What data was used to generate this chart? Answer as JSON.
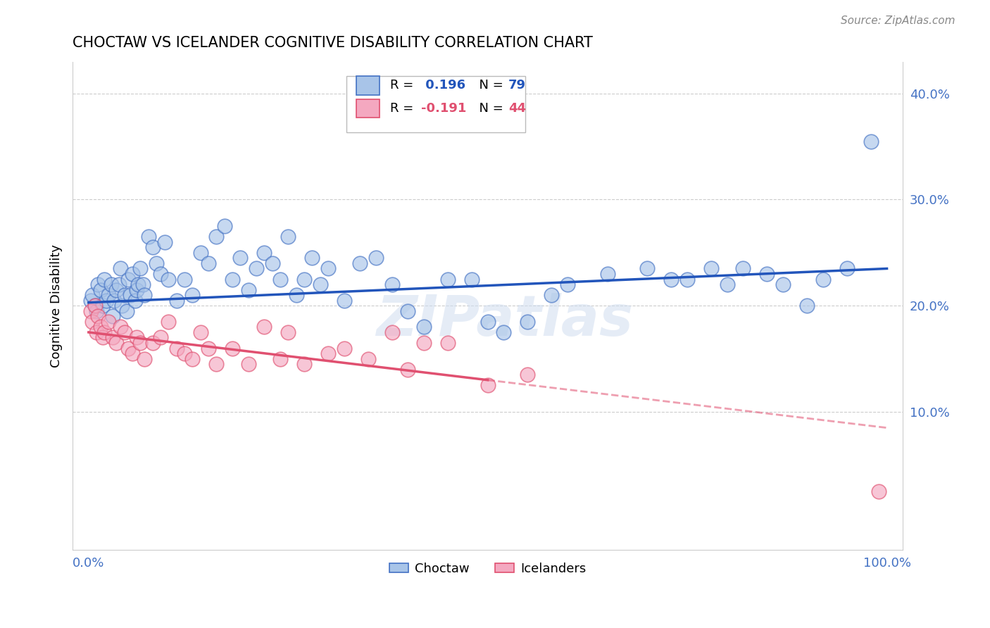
{
  "title": "CHOCTAW VS ICELANDER COGNITIVE DISABILITY CORRELATION CHART",
  "source": "Source: ZipAtlas.com",
  "ylabel": "Cognitive Disability",
  "watermark": "ZIPatlas",
  "choctaw_color": "#a8c4e8",
  "icelander_color": "#f4a8c0",
  "choctaw_edge_color": "#4472c4",
  "icelander_edge_color": "#e05070",
  "choctaw_line_color": "#2255bb",
  "icelander_line_color": "#e05070",
  "background_color": "#ffffff",
  "grid_color": "#cccccc",
  "axis_color": "#4472c4",
  "choctaw_x": [
    0.3,
    0.5,
    0.8,
    1.0,
    1.2,
    1.5,
    1.8,
    2.0,
    2.2,
    2.5,
    2.8,
    3.0,
    3.2,
    3.5,
    3.8,
    4.0,
    4.2,
    4.5,
    4.8,
    5.0,
    5.2,
    5.5,
    5.8,
    6.0,
    6.2,
    6.5,
    6.8,
    7.0,
    7.5,
    8.0,
    8.5,
    9.0,
    9.5,
    10.0,
    11.0,
    12.0,
    13.0,
    14.0,
    15.0,
    16.0,
    17.0,
    18.0,
    19.0,
    20.0,
    21.0,
    22.0,
    23.0,
    24.0,
    25.0,
    26.0,
    27.0,
    28.0,
    29.0,
    30.0,
    32.0,
    34.0,
    36.0,
    38.0,
    40.0,
    42.0,
    45.0,
    48.0,
    50.0,
    52.0,
    55.0,
    58.0,
    60.0,
    65.0,
    70.0,
    73.0,
    75.0,
    78.0,
    80.0,
    82.0,
    85.0,
    87.0,
    90.0,
    92.0,
    95.0,
    98.0
  ],
  "choctaw_y": [
    20.5,
    21.0,
    20.0,
    19.5,
    22.0,
    21.5,
    20.0,
    22.5,
    20.5,
    21.0,
    22.0,
    19.0,
    20.5,
    21.5,
    22.0,
    23.5,
    20.0,
    21.0,
    19.5,
    22.5,
    21.0,
    23.0,
    20.5,
    21.5,
    22.0,
    23.5,
    22.0,
    21.0,
    26.5,
    25.5,
    24.0,
    23.0,
    26.0,
    22.5,
    20.5,
    22.5,
    21.0,
    25.0,
    24.0,
    26.5,
    27.5,
    22.5,
    24.5,
    21.5,
    23.5,
    25.0,
    24.0,
    22.5,
    26.5,
    21.0,
    22.5,
    24.5,
    22.0,
    23.5,
    20.5,
    24.0,
    24.5,
    22.0,
    19.5,
    18.0,
    22.5,
    22.5,
    18.5,
    17.5,
    18.5,
    21.0,
    22.0,
    23.0,
    23.5,
    22.5,
    22.5,
    23.5,
    22.0,
    23.5,
    23.0,
    22.0,
    20.0,
    22.5,
    23.5,
    35.5
  ],
  "icelander_x": [
    0.3,
    0.5,
    0.8,
    1.0,
    1.2,
    1.5,
    1.8,
    2.0,
    2.5,
    3.0,
    3.5,
    4.0,
    4.5,
    5.0,
    5.5,
    6.0,
    6.5,
    7.0,
    8.0,
    9.0,
    10.0,
    11.0,
    12.0,
    13.0,
    14.0,
    15.0,
    16.0,
    18.0,
    20.0,
    22.0,
    24.0,
    25.0,
    27.0,
    30.0,
    32.0,
    35.0,
    38.0,
    40.0,
    42.0,
    45.0,
    50.0,
    55.0,
    99.0
  ],
  "icelander_y": [
    19.5,
    18.5,
    20.0,
    17.5,
    19.0,
    18.0,
    17.0,
    17.5,
    18.5,
    17.0,
    16.5,
    18.0,
    17.5,
    16.0,
    15.5,
    17.0,
    16.5,
    15.0,
    16.5,
    17.0,
    18.5,
    16.0,
    15.5,
    15.0,
    17.5,
    16.0,
    14.5,
    16.0,
    14.5,
    18.0,
    15.0,
    17.5,
    14.5,
    15.5,
    16.0,
    15.0,
    17.5,
    14.0,
    16.5,
    16.5,
    12.5,
    13.5,
    2.5
  ],
  "blue_line_x0": 0,
  "blue_line_y0": 20.3,
  "blue_line_x1": 100,
  "blue_line_y1": 23.5,
  "pink_line_x0": 0,
  "pink_line_y0": 17.5,
  "pink_line_x1": 50,
  "pink_line_y1": 13.0,
  "pink_dash_x0": 50,
  "pink_dash_y0": 13.0,
  "pink_dash_x1": 100,
  "pink_dash_y1": 8.5,
  "ylim_min": -3,
  "ylim_max": 43,
  "yticks": [
    10,
    20,
    30,
    40
  ],
  "ytick_labels": [
    "10.0%",
    "20.0%",
    "30.0%",
    "40.0%"
  ],
  "xtick_labels": [
    "0.0%",
    "100.0%"
  ],
  "xtick_vals": [
    0,
    100
  ]
}
